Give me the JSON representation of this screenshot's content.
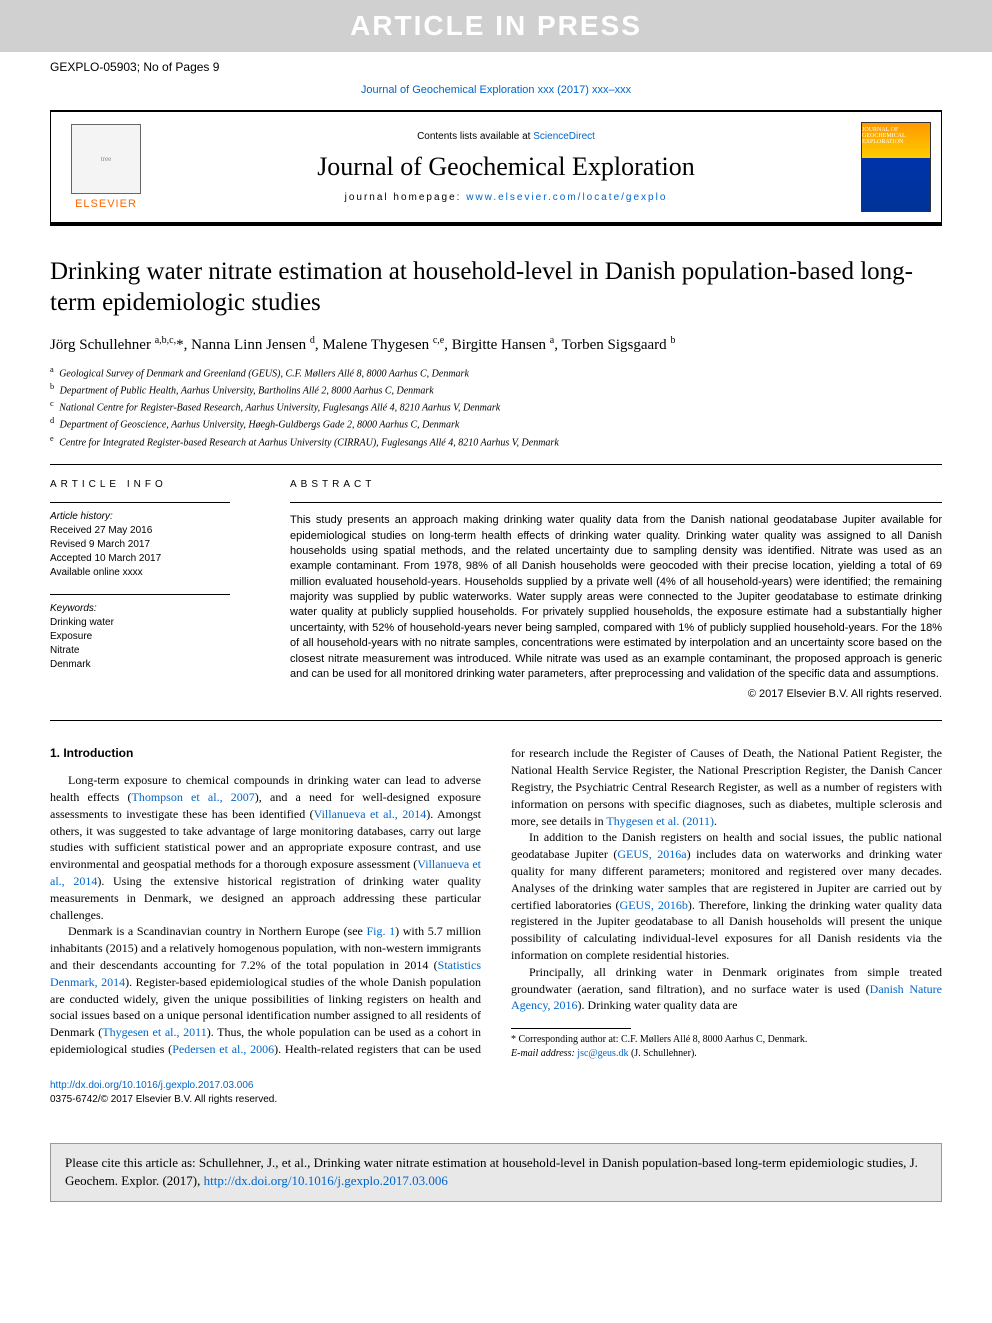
{
  "banner": "ARTICLE IN PRESS",
  "article_id": "GEXPLO-05903; No of Pages 9",
  "journal_ref_text": "Journal of Geochemical Exploration xxx (2017) xxx–xxx",
  "header": {
    "contents_prefix": "Contents lists available at ",
    "contents_link": "ScienceDirect",
    "journal_name": "Journal of Geochemical Exploration",
    "homepage_prefix": "journal homepage: ",
    "homepage_link": "www.elsevier.com/locate/gexplo",
    "elsevier": "ELSEVIER",
    "cover_label": "JOURNAL OF GEOCHEMICAL EXPLORATION"
  },
  "title": "Drinking water nitrate estimation at household-level in Danish population-based long-term epidemiologic studies",
  "authors_html": "Jörg Schullehner <sup>a,b,c,</sup>*, Nanna Linn Jensen <sup>d</sup>, Malene Thygesen <sup>c,e</sup>, Birgitte Hansen <sup>a</sup>, Torben Sigsgaard <sup>b</sup>",
  "affiliations": [
    {
      "sup": "a",
      "text": "Geological Survey of Denmark and Greenland (GEUS), C.F. Møllers Allé 8, 8000 Aarhus C, Denmark"
    },
    {
      "sup": "b",
      "text": "Department of Public Health, Aarhus University, Bartholins Allé 2, 8000 Aarhus C, Denmark"
    },
    {
      "sup": "c",
      "text": "National Centre for Register-Based Research, Aarhus University, Fuglesangs Allé 4, 8210 Aarhus V, Denmark"
    },
    {
      "sup": "d",
      "text": "Department of Geoscience, Aarhus University, Høegh-Guldbergs Gade 2, 8000 Aarhus C, Denmark"
    },
    {
      "sup": "e",
      "text": "Centre for Integrated Register-based Research at Aarhus University (CIRRAU), Fuglesangs Allé 4, 8210 Aarhus V, Denmark"
    }
  ],
  "info_heading": "article info",
  "history": {
    "label": "Article history:",
    "items": [
      "Received 27 May 2016",
      "Revised 9 March 2017",
      "Accepted 10 March 2017",
      "Available online xxxx"
    ]
  },
  "keywords": {
    "label": "Keywords:",
    "items": [
      "Drinking water",
      "Exposure",
      "Nitrate",
      "Denmark"
    ]
  },
  "abstract_heading": "abstract",
  "abstract_text": "This study presents an approach making drinking water quality data from the Danish national geodatabase Jupiter available for epidemiological studies on long-term health effects of drinking water quality. Drinking water quality was assigned to all Danish households using spatial methods, and the related uncertainty due to sampling density was identified. Nitrate was used as an example contaminant. From 1978, 98% of all Danish households were geocoded with their precise location, yielding a total of 69 million evaluated household-years. Households supplied by a private well (4% of all household-years) were identified; the remaining majority was supplied by public waterworks. Water supply areas were connected to the Jupiter geodatabase to estimate drinking water quality at publicly supplied households. For privately supplied households, the exposure estimate had a substantially higher uncertainty, with 52% of household-years never being sampled, compared with 1% of publicly supplied household-years. For the 18% of all household-years with no nitrate samples, concentrations were estimated by interpolation and an uncertainty score based on the closest nitrate measurement was introduced. While nitrate was used as an example contaminant, the proposed approach is generic and can be used for all monitored drinking water parameters, after preprocessing and validation of the specific data and assumptions.",
  "copyright": "© 2017 Elsevier B.V. All rights reserved.",
  "section_heading": "1. Introduction",
  "body": {
    "p1a": "Long-term exposure to chemical compounds in drinking water can lead to adverse health effects (",
    "p1_link1": "Thompson et al., 2007",
    "p1b": "), and a need for well-designed exposure assessments to investigate these has been identified (",
    "p1_link2": "Villanueva et al., 2014",
    "p1c": "). Amongst others, it was suggested to take advantage of large monitoring databases, carry out large studies with sufficient statistical power and an appropriate exposure contrast, and use environmental and geospatial methods for a thorough exposure assessment (",
    "p1_link3": "Villanueva et al., 2014",
    "p1d": "). Using the extensive historical registration of drinking water quality measurements in Denmark, we designed an approach addressing these particular challenges.",
    "p2a": "Denmark is a Scandinavian country in Northern Europe (see ",
    "p2_link1": "Fig. 1",
    "p2b": ") with 5.7 million inhabitants (2015) and a relatively homogenous population, with non-western immigrants and their descendants accounting for 7.2% of the total population in 2014 (",
    "p2_link2": "Statistics Denmark, 2014",
    "p2c": "). Register-based epidemiological studies of the whole Danish population are conducted widely, given the unique possibilities of linking registers on health and social issues based on a unique personal identification number assigned to all residents of Denmark (",
    "p2_link3": "Thygesen et al., 2011",
    "p2d": "). Thus, the whole population can be used as a cohort in epidemiological studies (",
    "p2_link4": "Pedersen et al., 2006",
    "p2e": "). Health-related registers that can be used for research include the Register of Causes of Death, the National Patient Register, the National Health Service Register, the National Prescription Register, the Danish Cancer Registry, the Psychiatric Central Research Register, as well as a number of registers with information on persons with specific diagnoses, such as diabetes, multiple sclerosis and more, see details in ",
    "p2_link5": "Thygesen et al. (2011)",
    "p2f": ".",
    "p3a": "In addition to the Danish registers on health and social issues, the public national geodatabase Jupiter (",
    "p3_link1": "GEUS, 2016a",
    "p3b": ") includes data on waterworks and drinking water quality for many different parameters; monitored and registered over many decades. Analyses of the drinking water samples that are registered in Jupiter are carried out by certified laboratories (",
    "p3_link2": "GEUS, 2016b",
    "p3c": "). Therefore, linking the drinking water quality data registered in the Jupiter geodatabase to all Danish households will present the unique possibility of calculating individual-level exposures for all Danish residents via the information on complete residential histories.",
    "p4a": "Principally, all drinking water in Denmark originates from simple treated groundwater (aeration, sand filtration), and no surface water is used (",
    "p4_link1": "Danish Nature Agency, 2016",
    "p4b": "). Drinking water quality data are"
  },
  "footnote": {
    "corr_prefix": "* Corresponding author at: C.F. Møllers Allé 8, 8000 Aarhus C, Denmark.",
    "email_label": "E-mail address: ",
    "email": "jsc@geus.dk",
    "email_suffix": " (J. Schullehner)."
  },
  "doi": {
    "link": "http://dx.doi.org/10.1016/j.gexplo.2017.03.006",
    "issn": "0375-6742/© 2017 Elsevier B.V. All rights reserved."
  },
  "citation": {
    "text_a": "Please cite this article as: Schullehner, J., et al., Drinking water nitrate estimation at household-level in Danish population-based long-term epidemiologic studies, J. Geochem. Explor. (2017), ",
    "link": "http://dx.doi.org/10.1016/j.gexplo.2017.03.006"
  },
  "colors": {
    "link": "#0066cc",
    "banner_bg": "#d0d0d0",
    "citation_bg": "#e8e8e8"
  }
}
